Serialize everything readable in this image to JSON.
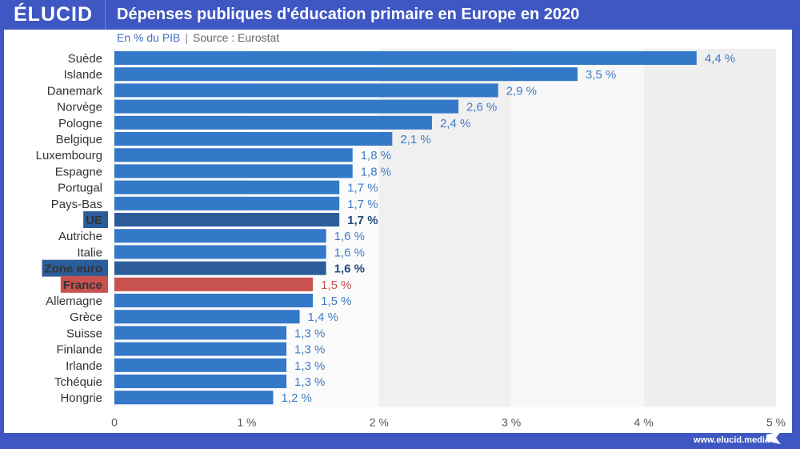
{
  "header": {
    "logo": "ÉLUCID",
    "title": "Dépenses publiques d'éducation primaire en Europe en 2020"
  },
  "subtitle": {
    "unit": "En % du PIB",
    "separator": "|",
    "source": "Source : Eurostat"
  },
  "footer": {
    "url": "www.elucid.media"
  },
  "colors": {
    "brand": "#3f57c2",
    "bar_default": "#3478c8",
    "bar_aggregate": "#2b5d9b",
    "bar_france": "#c8524f",
    "label_default": "#3f7cc4",
    "label_aggregate": "#24487a",
    "label_france": "#c8524f"
  },
  "chart_data": {
    "type": "bar",
    "orientation": "horizontal",
    "title": "Dépenses publiques d'éducation primaire en Europe en 2020",
    "subtitle": "En % du PIB | Source : Eurostat",
    "xlabel": "",
    "ylabel": "",
    "xlim": [
      0,
      5
    ],
    "x_ticks": [
      "0",
      "1 %",
      "2 %",
      "3 %",
      "4 %",
      "5 %"
    ],
    "grid": "alternating bands",
    "categories": [
      "Suède",
      "Islande",
      "Danemark",
      "Norvège",
      "Pologne",
      "Belgique",
      "Luxembourg",
      "Espagne",
      "Portugal",
      "Pays-Bas",
      "UE",
      "Autriche",
      "Italie",
      "Zone euro",
      "France",
      "Allemagne",
      "Grèce",
      "Suisse",
      "Finlande",
      "Irlande",
      "Tchéquie",
      "Hongrie"
    ],
    "values": [
      4.4,
      3.5,
      2.9,
      2.6,
      2.4,
      2.1,
      1.8,
      1.8,
      1.7,
      1.7,
      1.7,
      1.6,
      1.6,
      1.6,
      1.5,
      1.5,
      1.4,
      1.3,
      1.3,
      1.3,
      1.3,
      1.2
    ],
    "value_labels": [
      "4,4 %",
      "3,5 %",
      "2,9 %",
      "2,6 %",
      "2,4 %",
      "2,1 %",
      "1,8 %",
      "1,8 %",
      "1,7 %",
      "1,7 %",
      "1,7 %",
      "1,6 %",
      "1,6 %",
      "1,6 %",
      "1,5 %",
      "1,5 %",
      "1,4 %",
      "1,3 %",
      "1,3 %",
      "1,3 %",
      "1,3 %",
      "1,2 %"
    ],
    "highlight": [
      "default",
      "default",
      "default",
      "default",
      "default",
      "default",
      "default",
      "default",
      "default",
      "default",
      "aggregate",
      "default",
      "default",
      "aggregate",
      "france",
      "default",
      "default",
      "default",
      "default",
      "default",
      "default",
      "default"
    ]
  }
}
